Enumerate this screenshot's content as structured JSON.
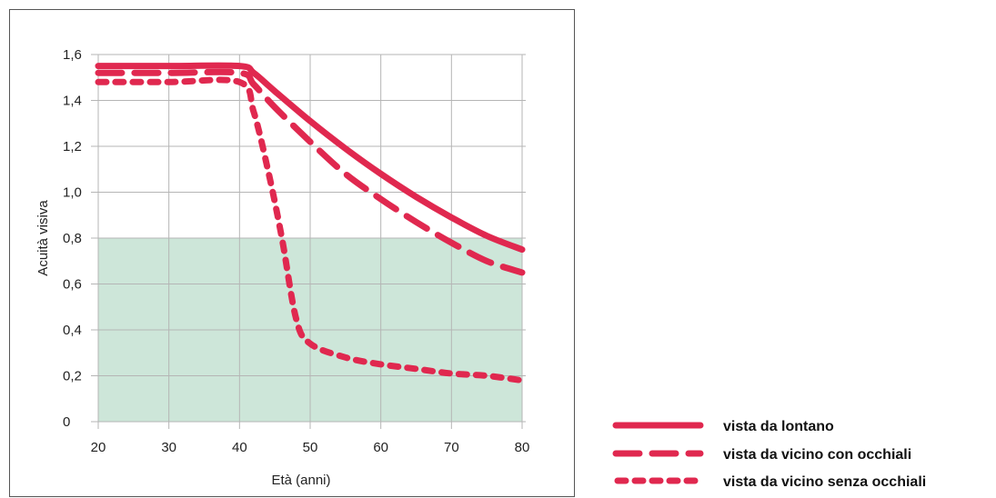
{
  "chart_data": {
    "type": "line",
    "xlabel": "Età (anni)",
    "ylabel": "Acuità visiva",
    "xlim": [
      20,
      80
    ],
    "ylim": [
      0,
      1.6
    ],
    "x_ticks": [
      20,
      30,
      40,
      50,
      60,
      70,
      80
    ],
    "x_tick_labels": [
      "20",
      "30",
      "40",
      "50",
      "60",
      "70",
      "80"
    ],
    "y_ticks": [
      0,
      0.2,
      0.4,
      0.6,
      0.8,
      1.0,
      1.2,
      1.4,
      1.6
    ],
    "y_tick_labels": [
      "0",
      "0,2",
      "0,4",
      "0,6",
      "0,8",
      "1,0",
      "1,2",
      "1,4",
      "1,6"
    ],
    "grid": true,
    "shaded_region": {
      "x": [
        20,
        80
      ],
      "y": [
        0,
        0.8
      ],
      "color": "#cde6d9"
    },
    "line_color": "#e0284f",
    "legend_position": "bottom-right-outside",
    "series": [
      {
        "name": "vista da lontano",
        "style": "solid",
        "points": [
          [
            20,
            1.55
          ],
          [
            30,
            1.55
          ],
          [
            40,
            1.55
          ],
          [
            42,
            1.52
          ],
          [
            45,
            1.44
          ],
          [
            50,
            1.31
          ],
          [
            55,
            1.19
          ],
          [
            60,
            1.08
          ],
          [
            65,
            0.98
          ],
          [
            70,
            0.89
          ],
          [
            75,
            0.81
          ],
          [
            80,
            0.75
          ]
        ]
      },
      {
        "name": "vista da vicino con occhiali",
        "style": "dashed",
        "points": [
          [
            20,
            1.52
          ],
          [
            30,
            1.52
          ],
          [
            40,
            1.52
          ],
          [
            42,
            1.47
          ],
          [
            45,
            1.37
          ],
          [
            50,
            1.22
          ],
          [
            55,
            1.08
          ],
          [
            60,
            0.97
          ],
          [
            65,
            0.87
          ],
          [
            70,
            0.78
          ],
          [
            75,
            0.7
          ],
          [
            80,
            0.65
          ]
        ]
      },
      {
        "name": "vista da vicino senza occhiali",
        "style": "dotted",
        "points": [
          [
            20,
            1.48
          ],
          [
            30,
            1.48
          ],
          [
            40,
            1.48
          ],
          [
            42,
            1.35
          ],
          [
            44,
            1.1
          ],
          [
            46,
            0.8
          ],
          [
            48,
            0.45
          ],
          [
            50,
            0.34
          ],
          [
            55,
            0.28
          ],
          [
            60,
            0.25
          ],
          [
            65,
            0.23
          ],
          [
            70,
            0.21
          ],
          [
            75,
            0.2
          ],
          [
            80,
            0.18
          ]
        ]
      }
    ]
  }
}
